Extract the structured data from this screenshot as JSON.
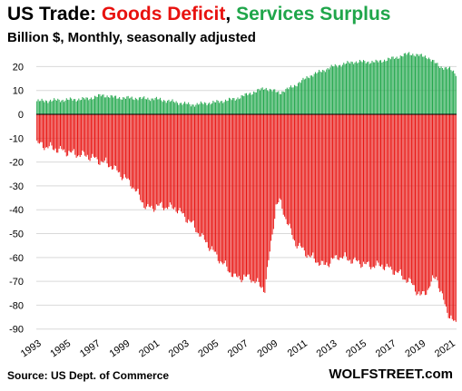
{
  "title": {
    "prefix": "US Trade: ",
    "deficit": "Goods Deficit",
    "separator": ", ",
    "surplus": "Services Surplus"
  },
  "subtitle": "Billion $, Monthly, seasonally adjusted",
  "source": "Source: US Dept. of Commerce",
  "credit": "WOLFSTREET.com",
  "colors": {
    "deficit": "#e8120f",
    "surplus": "#1fa64a",
    "grid": "#d9d9d9",
    "axis_text": "#000000"
  },
  "chart_data": {
    "type": "bar",
    "x_start": "1993-01",
    "x_end": "2021-05",
    "x_tick_labels": [
      "1993",
      "1995",
      "1997",
      "1999",
      "2001",
      "2003",
      "2005",
      "2007",
      "2009",
      "2011",
      "2013",
      "2015",
      "2017",
      "2019",
      "2021"
    ],
    "ylim": [
      -92,
      27
    ],
    "y_ticks": [
      20,
      10,
      0,
      -10,
      -20,
      -30,
      -40,
      -50,
      -60,
      -70,
      -80,
      -90
    ],
    "grid": true,
    "legend": "none",
    "series": [
      {
        "name": "Services Surplus",
        "anchors": [
          [
            "1993-01",
            5.5
          ],
          [
            "1996-06",
            6.5
          ],
          [
            "1997-06",
            8
          ],
          [
            "1998-06",
            7
          ],
          [
            "2001-01",
            6.5
          ],
          [
            "2002-01",
            5.5
          ],
          [
            "2003-06",
            4
          ],
          [
            "2005-01",
            5
          ],
          [
            "2006-06",
            6.5
          ],
          [
            "2008-06",
            11
          ],
          [
            "2009-06",
            9
          ],
          [
            "2010-06",
            12
          ],
          [
            "2011-06",
            16
          ],
          [
            "2013-01",
            20
          ],
          [
            "2014-06",
            22
          ],
          [
            "2016-01",
            22
          ],
          [
            "2017-06",
            24
          ],
          [
            "2018-03",
            25.5
          ],
          [
            "2019-06",
            24
          ],
          [
            "2020-04",
            20
          ],
          [
            "2020-12",
            19
          ],
          [
            "2021-05",
            17
          ]
        ]
      },
      {
        "name": "Goods Deficit",
        "anchors": [
          [
            "1993-01",
            -11
          ],
          [
            "1995-06",
            -15
          ],
          [
            "1996-06",
            -16
          ],
          [
            "1998-01",
            -20
          ],
          [
            "1999-06",
            -28
          ],
          [
            "2000-06",
            -38
          ],
          [
            "2001-06",
            -37
          ],
          [
            "2002-06",
            -38
          ],
          [
            "2003-06",
            -44
          ],
          [
            "2004-06",
            -52
          ],
          [
            "2005-06",
            -60
          ],
          [
            "2006-06",
            -67
          ],
          [
            "2007-06",
            -67
          ],
          [
            "2008-06",
            -72
          ],
          [
            "2009-03",
            -37
          ],
          [
            "2009-06",
            -35
          ],
          [
            "2010-06",
            -52
          ],
          [
            "2011-06",
            -58
          ],
          [
            "2012-06",
            -62
          ],
          [
            "2013-06",
            -58
          ],
          [
            "2014-06",
            -60
          ],
          [
            "2015-06",
            -62
          ],
          [
            "2016-06",
            -62
          ],
          [
            "2017-06",
            -65
          ],
          [
            "2018-06",
            -70
          ],
          [
            "2018-12",
            -75
          ],
          [
            "2019-06",
            -72
          ],
          [
            "2020-01",
            -66
          ],
          [
            "2020-04",
            -72
          ],
          [
            "2020-09",
            -80
          ],
          [
            "2021-01",
            -84
          ],
          [
            "2021-05",
            -87
          ]
        ]
      }
    ]
  }
}
